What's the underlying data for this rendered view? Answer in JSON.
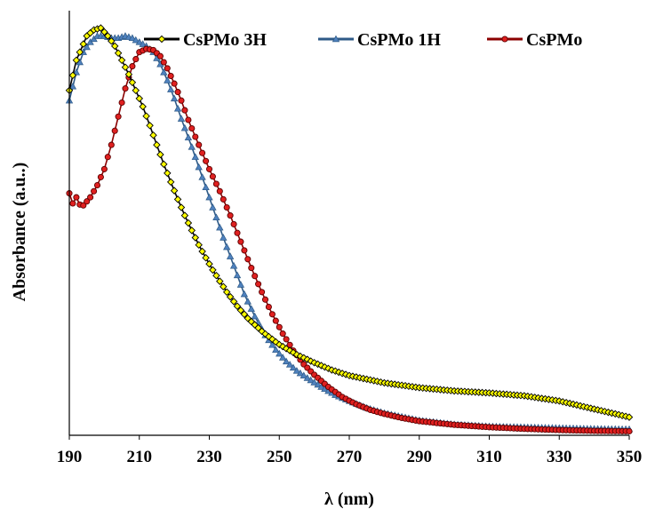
{
  "chart_data": {
    "type": "scatter",
    "xlabel": "λ (nm)",
    "ylabel": "Absorbance (a.u..)",
    "xlim": [
      190,
      350
    ],
    "ylim": [
      0,
      1
    ],
    "x_ticks": [
      "190",
      "210",
      "230",
      "250",
      "270",
      "290",
      "310",
      "330",
      "350"
    ],
    "y_ticks_shown": false,
    "grid": false,
    "legend_position": "top",
    "series": [
      {
        "name": "CsPMo 3H",
        "line_color": "#000000",
        "marker": "diamond",
        "marker_fill": "#ffff00",
        "marker_stroke": "#000000",
        "x": [
          190,
          192,
          195,
          197,
          199,
          201,
          203,
          205,
          207,
          209,
          211,
          213,
          215,
          217,
          219,
          221,
          223,
          225,
          227,
          229,
          231,
          233,
          235,
          238,
          241,
          245,
          250,
          255,
          260,
          265,
          270,
          280,
          290,
          300,
          310,
          320,
          330,
          340,
          350
        ],
        "y": [
          0.855,
          0.93,
          0.99,
          1.005,
          1.01,
          0.99,
          0.965,
          0.93,
          0.895,
          0.855,
          0.815,
          0.768,
          0.72,
          0.672,
          0.628,
          0.585,
          0.545,
          0.508,
          0.472,
          0.44,
          0.41,
          0.382,
          0.355,
          0.32,
          0.29,
          0.258,
          0.225,
          0.2,
          0.18,
          0.162,
          0.148,
          0.13,
          0.118,
          0.11,
          0.105,
          0.098,
          0.085,
          0.065,
          0.045
        ]
      },
      {
        "name": "CsPMo 1H",
        "line_color": "#2e5a87",
        "marker": "triangle",
        "marker_fill": "#4f81bd",
        "marker_stroke": "#2e5a87",
        "x": [
          190,
          192,
          194,
          196,
          198,
          200,
          202,
          204,
          206,
          208,
          210,
          212,
          214,
          216,
          218,
          220,
          222,
          225,
          228,
          231,
          234,
          237,
          240,
          243,
          246,
          249,
          252,
          255,
          258,
          262,
          266,
          270,
          275,
          280,
          290,
          300,
          310,
          320,
          330,
          340,
          350
        ],
        "y": [
          0.83,
          0.9,
          0.95,
          0.975,
          0.99,
          0.99,
          0.985,
          0.985,
          0.99,
          0.985,
          0.975,
          0.965,
          0.95,
          0.92,
          0.88,
          0.835,
          0.785,
          0.715,
          0.64,
          0.565,
          0.49,
          0.42,
          0.35,
          0.295,
          0.248,
          0.212,
          0.183,
          0.16,
          0.142,
          0.12,
          0.1,
          0.085,
          0.068,
          0.055,
          0.037,
          0.027,
          0.022,
          0.02,
          0.018,
          0.016,
          0.015
        ]
      },
      {
        "name": "CsPMo",
        "line_color": "#8b0000",
        "marker": "circle",
        "marker_fill": "#e02020",
        "marker_stroke": "#5a0000",
        "x": [
          190,
          191,
          192,
          193,
          194,
          195,
          196,
          198,
          200,
          202,
          204,
          206,
          208,
          210,
          212,
          214,
          216,
          218,
          220,
          222,
          224,
          226,
          228,
          230,
          233,
          236,
          239,
          242,
          245,
          248,
          251,
          254,
          257,
          260,
          264,
          268,
          272,
          276,
          280,
          285,
          290,
          300,
          310,
          320,
          330,
          340,
          350
        ],
        "y": [
          0.6,
          0.575,
          0.59,
          0.572,
          0.57,
          0.58,
          0.59,
          0.62,
          0.66,
          0.72,
          0.79,
          0.86,
          0.915,
          0.95,
          0.958,
          0.955,
          0.94,
          0.91,
          0.872,
          0.83,
          0.782,
          0.74,
          0.7,
          0.66,
          0.605,
          0.545,
          0.48,
          0.415,
          0.355,
          0.3,
          0.252,
          0.21,
          0.176,
          0.15,
          0.12,
          0.095,
          0.077,
          0.063,
          0.053,
          0.043,
          0.035,
          0.026,
          0.02,
          0.016,
          0.013,
          0.011,
          0.01
        ]
      }
    ]
  }
}
